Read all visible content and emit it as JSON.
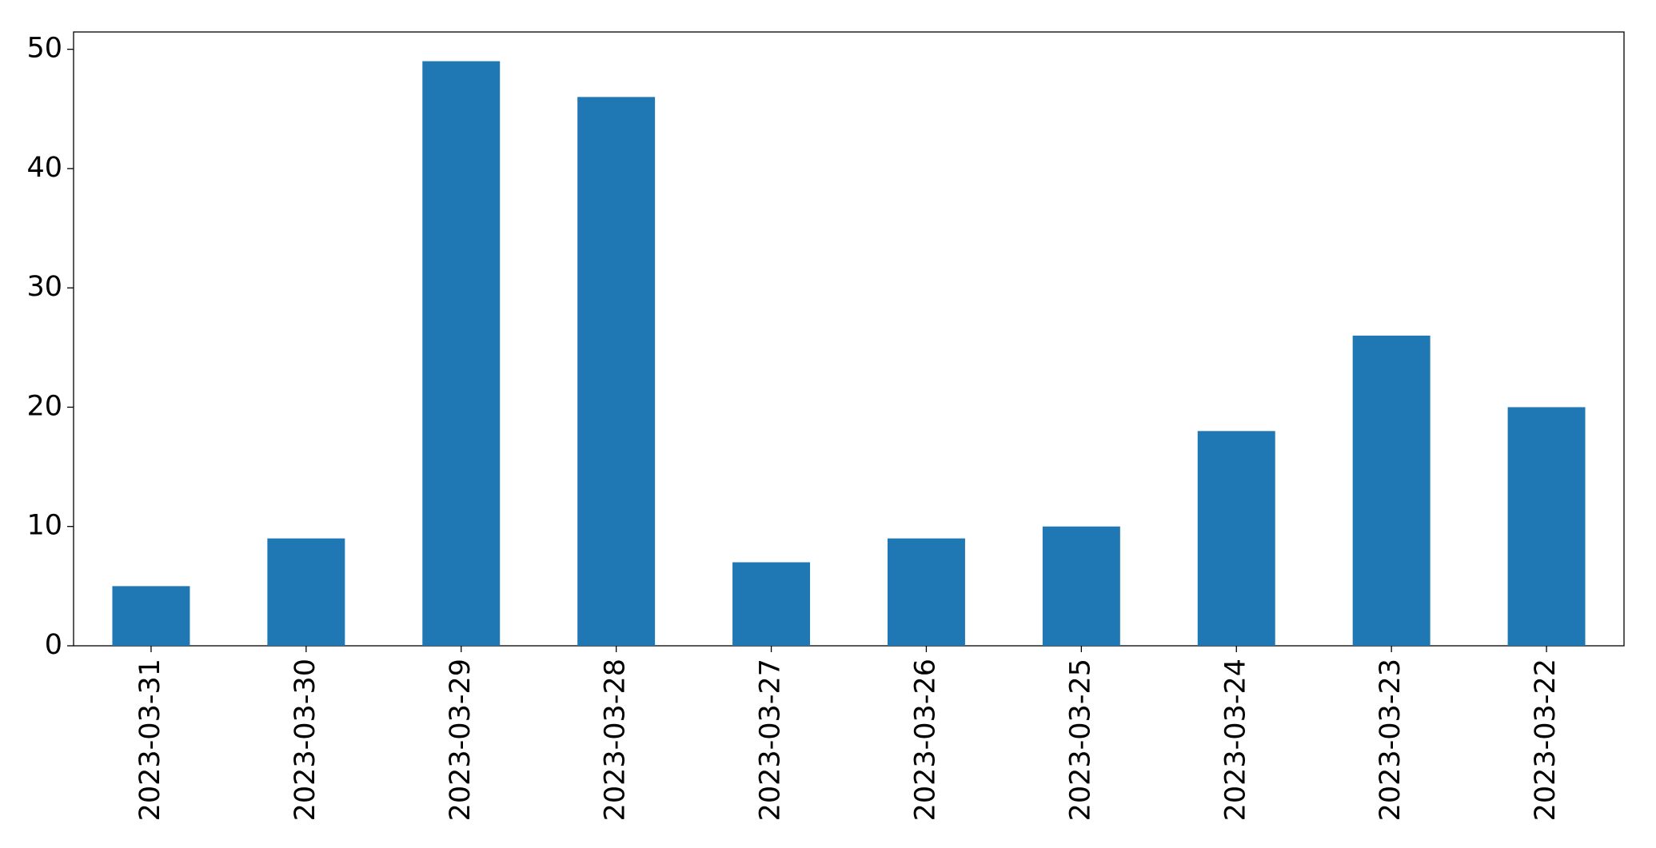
{
  "chart_data": {
    "type": "bar",
    "categories": [
      "2023-03-31",
      "2023-03-30",
      "2023-03-29",
      "2023-03-28",
      "2023-03-27",
      "2023-03-26",
      "2023-03-25",
      "2023-03-24",
      "2023-03-23",
      "2023-03-22"
    ],
    "values": [
      5,
      9,
      49,
      46,
      7,
      9,
      10,
      18,
      26,
      20
    ],
    "color": "#1f77b4",
    "ylim": [
      0,
      51.45
    ],
    "yticks": [
      0,
      10,
      20,
      30,
      40,
      50
    ],
    "grid": false
  }
}
